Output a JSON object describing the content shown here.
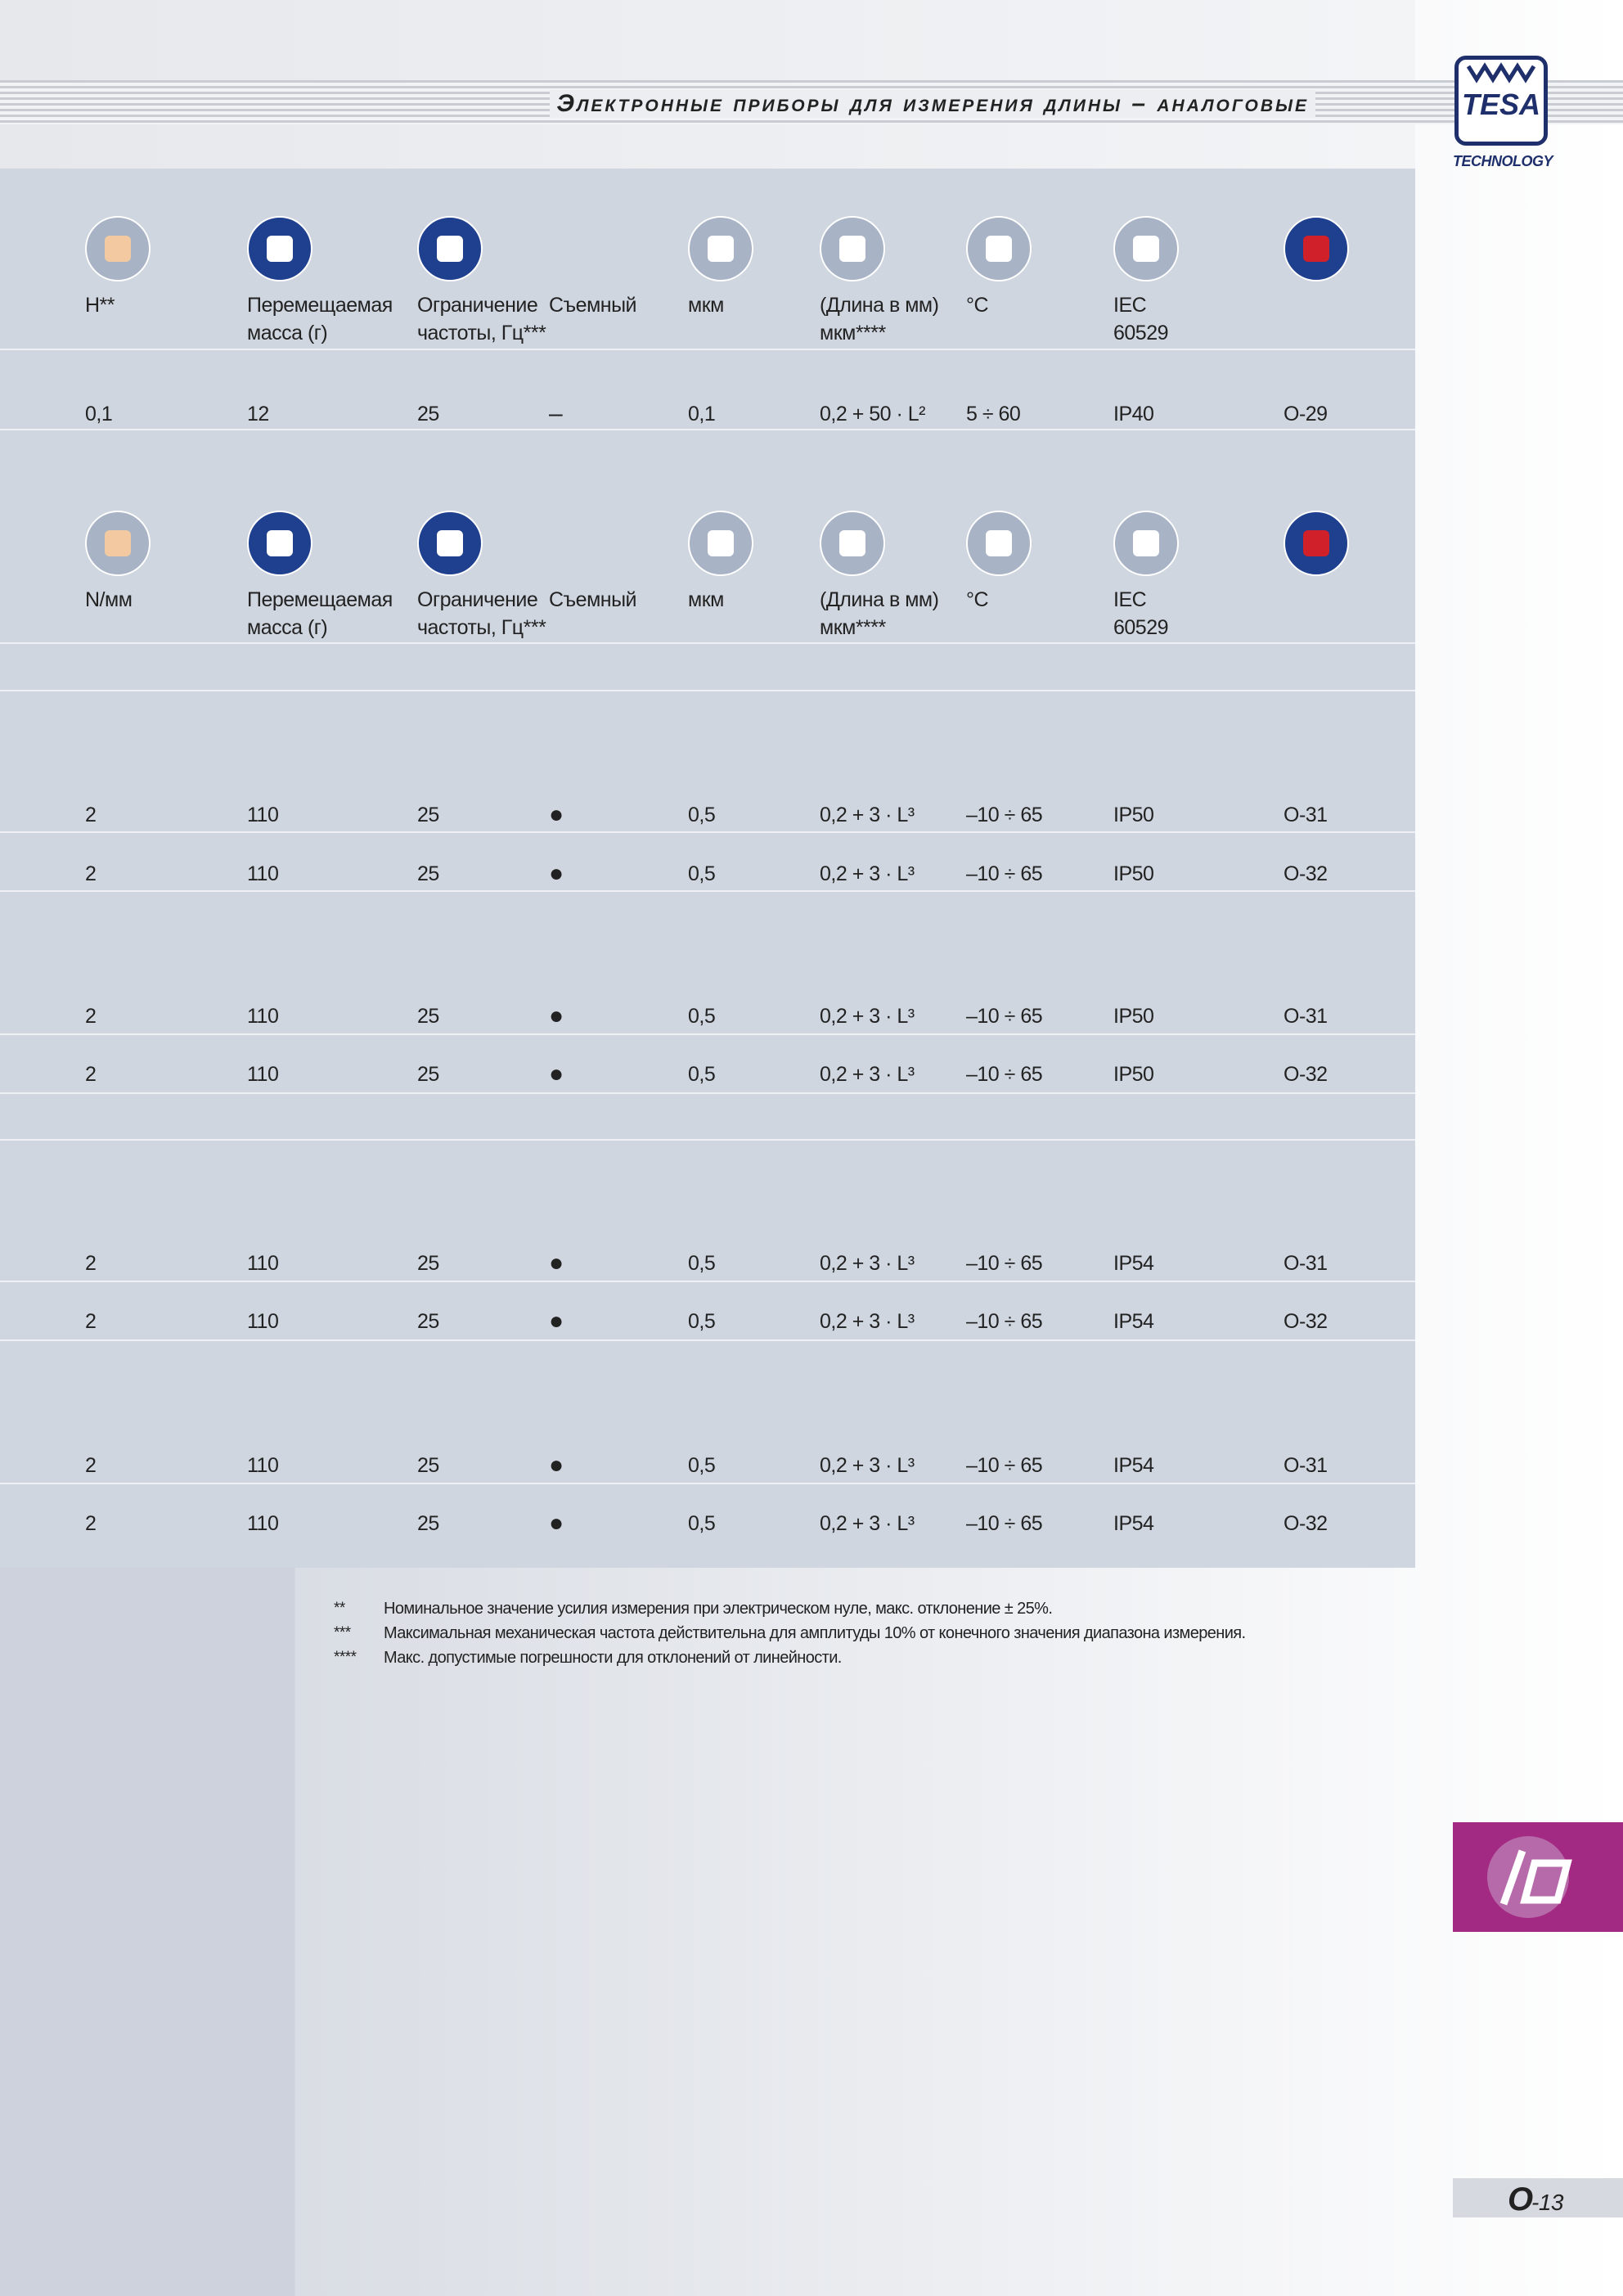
{
  "header": {
    "title": "Электронные приборы для измерения длины – аналоговые",
    "logo": "TESA",
    "logo_sub": "TECHNOLOGY"
  },
  "table1": {
    "headers": [
      "H**",
      "Перемещаемая\nмасса (г)",
      "Ограничение\nчастоты, Гц***",
      "Съемный",
      "мкм",
      "(Длина в мм)\nмкм****",
      "°C",
      "IEC\n60529"
    ],
    "rows": [
      [
        "0,1",
        "12",
        "25",
        "–",
        "0,1",
        "0,2 + 50 · L²",
        "5 ÷ 60",
        "IP40",
        "O-29"
      ]
    ]
  },
  "table2": {
    "headers": [
      "N/мм",
      "Перемещаемая\nмасса (г)",
      "Ограничение\nчастоты, Гц***",
      "Съемный",
      "мкм",
      "(Длина в мм)\nмкм****",
      "°C",
      "IEC\n60529"
    ],
    "rows": [
      [
        "2",
        "110",
        "25",
        "●",
        "0,5",
        "0,2 + 3 · L³",
        "–10 ÷ 65",
        "IP50",
        "O-31"
      ],
      [
        "2",
        "110",
        "25",
        "●",
        "0,5",
        "0,2 + 3 · L³",
        "–10 ÷ 65",
        "IP50",
        "O-32"
      ],
      [
        "2",
        "110",
        "25",
        "●",
        "0,5",
        "0,2 + 3 · L³",
        "–10 ÷ 65",
        "IP50",
        "O-31"
      ],
      [
        "2",
        "110",
        "25",
        "●",
        "0,5",
        "0,2 + 3 · L³",
        "–10 ÷ 65",
        "IP50",
        "O-32"
      ],
      [
        "2",
        "110",
        "25",
        "●",
        "0,5",
        "0,2 + 3 · L³",
        "–10 ÷ 65",
        "IP54",
        "O-31"
      ],
      [
        "2",
        "110",
        "25",
        "●",
        "0,5",
        "0,2 + 3 · L³",
        "–10 ÷ 65",
        "IP54",
        "O-32"
      ],
      [
        "2",
        "110",
        "25",
        "●",
        "0,5",
        "0,2 + 3 · L³",
        "–10 ÷ 65",
        "IP54",
        "O-31"
      ],
      [
        "2",
        "110",
        "25",
        "●",
        "0,5",
        "0,2 + 3 · L³",
        "–10 ÷ 65",
        "IP54",
        "O-32"
      ]
    ]
  },
  "footnotes": [
    {
      "mark": "**",
      "text": "Номинальное значение усилия измерения при электрическом нуле, макс. отклонение ± 25%."
    },
    {
      "mark": "***",
      "text": "Максимальная механическая частота действительна для амплитуды 10% от конечного значения диапазона измерения."
    },
    {
      "mark": "****",
      "text": "Макс. допустимые погрешности для отклонений от линейности."
    }
  ],
  "page": {
    "section": "O",
    "number": "-13"
  }
}
